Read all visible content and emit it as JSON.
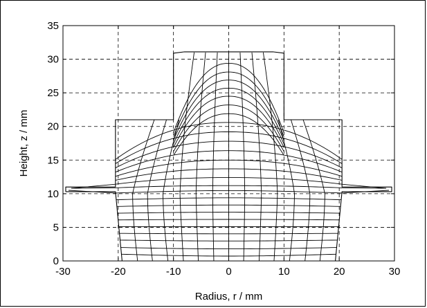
{
  "chart_data": {
    "type": "line",
    "title": "",
    "xlabel": "Radius, r / mm",
    "ylabel": "Height, z / mm",
    "xlim": [
      -30,
      30
    ],
    "ylim": [
      0,
      35
    ],
    "xticks": [
      -30,
      -20,
      -10,
      0,
      10,
      20,
      30
    ],
    "yticks": [
      0,
      5,
      10,
      15,
      20,
      25,
      30,
      35
    ],
    "xtick_labels": [
      "-30",
      "-20",
      "-10",
      "0",
      "10",
      "20",
      "30"
    ],
    "ytick_labels": [
      "0",
      "5",
      "10",
      "15",
      "20",
      "25",
      "30",
      "35"
    ],
    "grid": "dashed",
    "outline": [
      [
        -29.5,
        10.3
      ],
      [
        -29.5,
        11.0
      ],
      [
        -20.5,
        11.0
      ],
      [
        -20.5,
        21.0
      ],
      [
        -10.0,
        21.0
      ],
      [
        -10.0,
        30.9
      ],
      [
        -8.0,
        31.1
      ],
      [
        8.0,
        31.1
      ],
      [
        10.0,
        30.9
      ],
      [
        10.0,
        21.0
      ],
      [
        20.5,
        21.0
      ],
      [
        20.5,
        11.0
      ],
      [
        29.5,
        11.0
      ],
      [
        29.5,
        10.3
      ],
      [
        20.5,
        10.3
      ],
      [
        19.3,
        0.0
      ],
      [
        -19.3,
        0.0
      ],
      [
        -20.5,
        10.3
      ],
      [
        -29.5,
        10.3
      ]
    ],
    "flash_level": 10.6,
    "horizontal_mesh_heights": [
      1.0,
      2.0,
      3.1,
      4.1,
      5.1,
      6.1,
      7.1,
      8.1,
      9.1,
      10.1,
      11.2,
      12.4,
      13.7,
      15.0,
      16.4,
      17.8,
      19.2,
      20.6,
      21.9,
      23.2,
      24.5,
      25.7,
      26.9,
      28.1,
      29.4
    ],
    "vertical_mesh_radii_bottom": [
      -16.5,
      -13.8,
      -11.0,
      -8.2,
      -5.5,
      -2.7,
      0.0,
      2.7,
      5.5,
      8.2,
      11.0,
      13.8,
      16.5
    ]
  },
  "colors": {
    "mesh": "#000000",
    "grid": "#000000",
    "background": "#ffffff"
  }
}
